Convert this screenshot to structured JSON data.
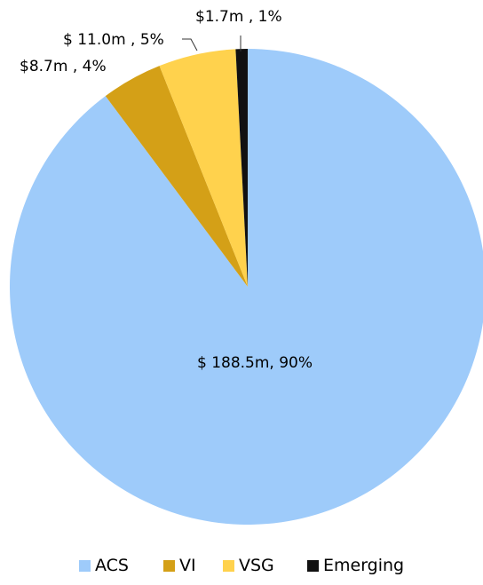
{
  "chart_data": {
    "type": "pie",
    "title": "",
    "start_angle_deg": -90,
    "direction": "clockwise",
    "slices": [
      {
        "name": "ACS",
        "value": 188.5,
        "label": "$ 188.5m, 90%",
        "color": "#9ECBFA"
      },
      {
        "name": "VI",
        "value": 8.7,
        "label": "$8.7m , 4%",
        "color": "#D4A017"
      },
      {
        "name": "VSG",
        "value": 11.0,
        "label": "$ 11.0m , 5%",
        "color": "#FFD24D"
      },
      {
        "name": "Emerging",
        "value": 1.7,
        "label": "$1.7m , 1%",
        "color": "#111111"
      }
    ],
    "legend_position": "bottom"
  }
}
